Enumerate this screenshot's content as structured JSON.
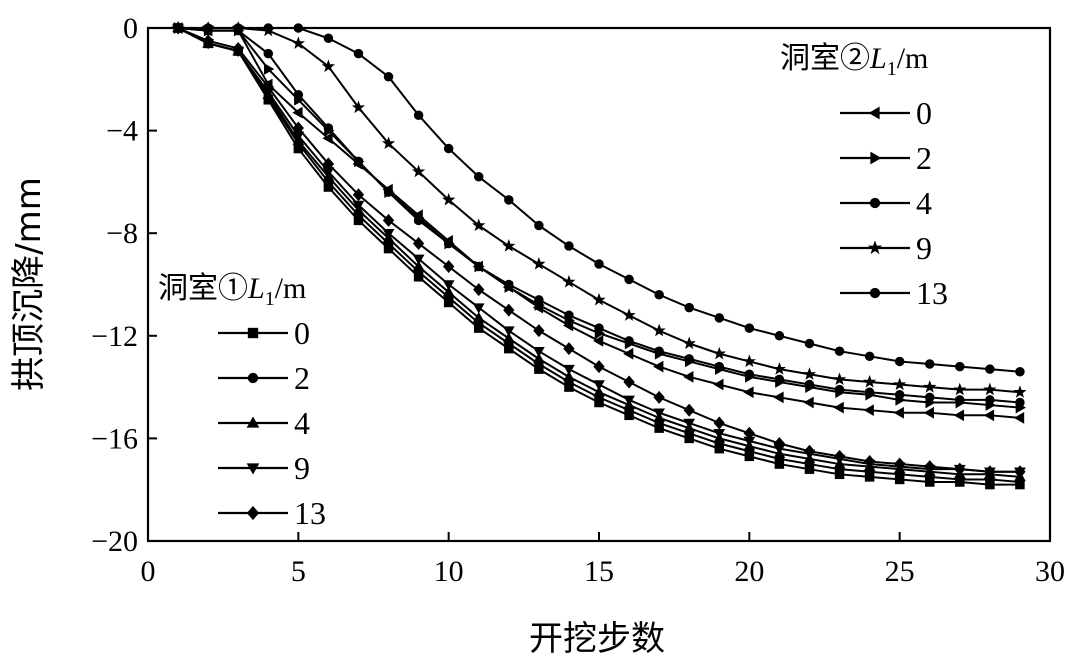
{
  "chart_data": {
    "type": "line",
    "xlabel": "开挖步数",
    "ylabel": "拱顶沉降/mm",
    "xlim": [
      0,
      30
    ],
    "ylim": [
      -20,
      0
    ],
    "xticks": [
      0,
      5,
      10,
      15,
      20,
      25,
      30
    ],
    "yticks": [
      0,
      -4,
      -8,
      -12,
      -16,
      -20
    ],
    "ytick_labels": [
      "0",
      "−4",
      "−8",
      "−12",
      "−16",
      "−20"
    ],
    "x": [
      1,
      2,
      3,
      4,
      5,
      6,
      7,
      8,
      9,
      10,
      11,
      12,
      13,
      14,
      15,
      16,
      17,
      18,
      19,
      20,
      21,
      22,
      23,
      24,
      25,
      26,
      27,
      28,
      29
    ],
    "groups": [
      {
        "title_prefix": "洞室①",
        "title_var": "L",
        "title_sub": "1",
        "title_unit": "/m",
        "legend_position": "center-left",
        "series": [
          {
            "name": "0",
            "marker": "square",
            "values": [
              0,
              -0.6,
              -0.9,
              -2.8,
              -4.7,
              -6.2,
              -7.5,
              -8.6,
              -9.7,
              -10.7,
              -11.7,
              -12.5,
              -13.3,
              -14.0,
              -14.6,
              -15.1,
              -15.6,
              -16.0,
              -16.4,
              -16.7,
              -17.0,
              -17.2,
              -17.4,
              -17.5,
              -17.6,
              -17.7,
              -17.7,
              -17.8,
              -17.8
            ]
          },
          {
            "name": "2",
            "marker": "circle",
            "values": [
              0,
              -0.6,
              -0.9,
              -2.7,
              -4.5,
              -6.0,
              -7.3,
              -8.4,
              -9.5,
              -10.5,
              -11.5,
              -12.3,
              -13.1,
              -13.8,
              -14.4,
              -14.9,
              -15.4,
              -15.8,
              -16.2,
              -16.5,
              -16.8,
              -17.0,
              -17.2,
              -17.3,
              -17.4,
              -17.5,
              -17.6,
              -17.6,
              -17.7
            ]
          },
          {
            "name": "4",
            "marker": "triangle-up",
            "values": [
              0,
              -0.6,
              -0.9,
              -2.6,
              -4.4,
              -5.8,
              -7.1,
              -8.2,
              -9.3,
              -10.3,
              -11.3,
              -12.1,
              -12.9,
              -13.6,
              -14.2,
              -14.7,
              -15.2,
              -15.6,
              -16.0,
              -16.3,
              -16.6,
              -16.8,
              -17.0,
              -17.1,
              -17.2,
              -17.3,
              -17.4,
              -17.4,
              -17.5
            ]
          },
          {
            "name": "9",
            "marker": "triangle-down",
            "values": [
              0,
              -0.6,
              -0.9,
              -2.5,
              -4.2,
              -5.6,
              -6.9,
              -8.0,
              -9.0,
              -10.0,
              -10.9,
              -11.8,
              -12.6,
              -13.3,
              -13.9,
              -14.5,
              -15.0,
              -15.4,
              -15.8,
              -16.1,
              -16.4,
              -16.6,
              -16.8,
              -17.0,
              -17.1,
              -17.2,
              -17.2,
              -17.3,
              -17.3
            ]
          },
          {
            "name": "13",
            "marker": "diamond",
            "values": [
              0,
              -0.5,
              -0.8,
              -2.3,
              -3.9,
              -5.3,
              -6.5,
              -7.5,
              -8.4,
              -9.3,
              -10.2,
              -11.0,
              -11.8,
              -12.5,
              -13.2,
              -13.8,
              -14.4,
              -14.9,
              -15.4,
              -15.8,
              -16.2,
              -16.5,
              -16.7,
              -16.9,
              -17.0,
              -17.1,
              -17.2,
              -17.3,
              -17.3
            ]
          }
        ]
      },
      {
        "title_prefix": "洞室②",
        "title_var": "L",
        "title_sub": "1",
        "title_unit": "/m",
        "legend_position": "top-right",
        "series": [
          {
            "name": "0",
            "marker": "triangle-left",
            "values": [
              0,
              -0.1,
              -0.1,
              -2.2,
              -3.3,
              -4.3,
              -5.3,
              -6.3,
              -7.3,
              -8.3,
              -9.3,
              -10.1,
              -10.9,
              -11.6,
              -12.2,
              -12.7,
              -13.2,
              -13.6,
              -13.9,
              -14.2,
              -14.4,
              -14.6,
              -14.8,
              -14.9,
              -15.0,
              -15.0,
              -15.1,
              -15.1,
              -15.2
            ]
          },
          {
            "name": "2",
            "marker": "triangle-right",
            "values": [
              0,
              -0.1,
              -0.1,
              -1.6,
              -2.8,
              -4.0,
              -5.2,
              -6.4,
              -7.4,
              -8.4,
              -9.3,
              -10.1,
              -10.8,
              -11.4,
              -11.9,
              -12.3,
              -12.7,
              -13.0,
              -13.3,
              -13.6,
              -13.8,
              -14.0,
              -14.2,
              -14.3,
              -14.5,
              -14.6,
              -14.6,
              -14.7,
              -14.8
            ]
          },
          {
            "name": "4",
            "marker": "circle",
            "values": [
              0,
              -0.1,
              -0.1,
              -1.0,
              -2.6,
              -3.9,
              -5.2,
              -6.4,
              -7.5,
              -8.4,
              -9.3,
              -10.0,
              -10.6,
              -11.2,
              -11.7,
              -12.2,
              -12.6,
              -12.9,
              -13.2,
              -13.5,
              -13.7,
              -13.9,
              -14.1,
              -14.2,
              -14.3,
              -14.4,
              -14.5,
              -14.5,
              -14.6
            ]
          },
          {
            "name": "9",
            "marker": "star",
            "values": [
              0,
              0,
              0,
              -0.1,
              -0.6,
              -1.5,
              -3.1,
              -4.5,
              -5.6,
              -6.7,
              -7.7,
              -8.5,
              -9.2,
              -9.9,
              -10.6,
              -11.2,
              -11.8,
              -12.3,
              -12.7,
              -13.0,
              -13.3,
              -13.5,
              -13.7,
              -13.8,
              -13.9,
              -14.0,
              -14.1,
              -14.1,
              -14.2
            ]
          },
          {
            "name": "13",
            "marker": "circle",
            "values": [
              0,
              0,
              0,
              0,
              0,
              -0.4,
              -1.0,
              -1.9,
              -3.4,
              -4.7,
              -5.8,
              -6.7,
              -7.7,
              -8.5,
              -9.2,
              -9.8,
              -10.4,
              -10.9,
              -11.3,
              -11.7,
              -12.0,
              -12.3,
              -12.6,
              -12.8,
              -13.0,
              -13.1,
              -13.2,
              -13.3,
              -13.4
            ]
          }
        ]
      }
    ]
  }
}
